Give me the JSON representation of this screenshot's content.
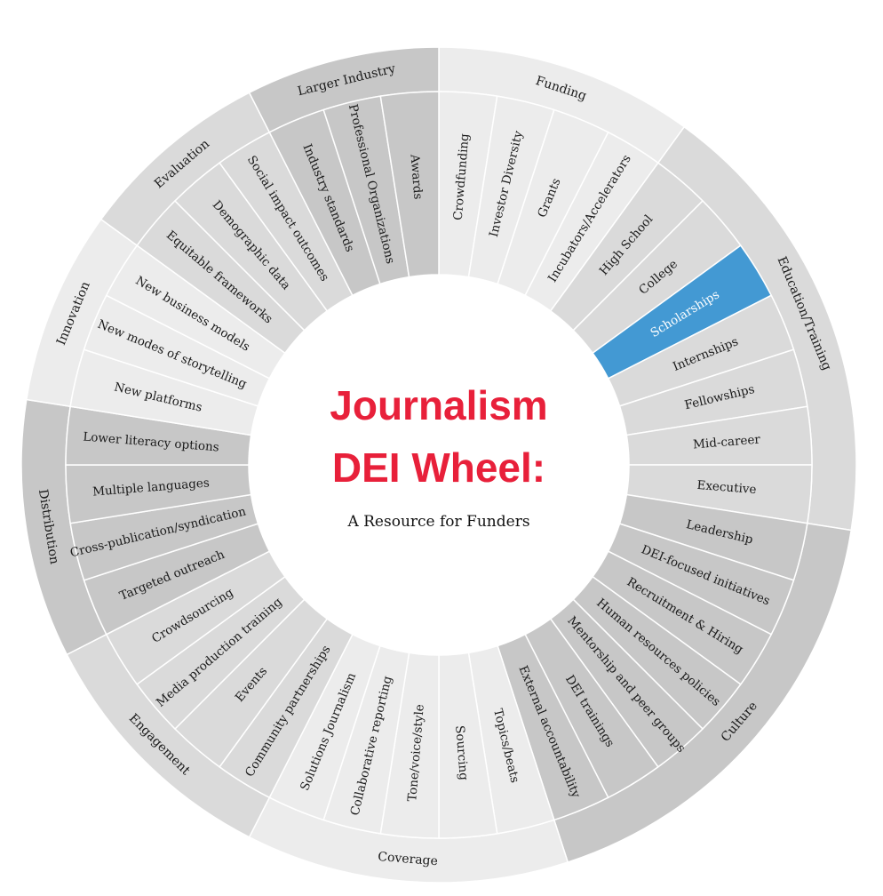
{
  "title_line1": "Journalism",
  "title_line2": "DEI Wheel:",
  "subtitle": "A Resource for Funders",
  "colors": {
    "title": "#e8203a",
    "subtitle": "#111111",
    "text": "#1a1a1a",
    "highlight": "#4399d3",
    "highlight_text": "#ffffff",
    "divider": "#ffffff"
  },
  "sectors": [
    {
      "name": "Funding",
      "color": "#ececec",
      "items": [
        {
          "label": "Crowdfunding"
        },
        {
          "label": "Investor Diversity"
        },
        {
          "label": "Grants"
        },
        {
          "label": "Incubators/Accelerators"
        }
      ]
    },
    {
      "name": "Education/Training",
      "color": "#dadada",
      "items": [
        {
          "label": "High School"
        },
        {
          "label": "College"
        },
        {
          "label": "Scholarships",
          "highlighted": true
        },
        {
          "label": "Internships"
        },
        {
          "label": "Fellowships"
        },
        {
          "label": "Mid-career"
        },
        {
          "label": "Executive"
        }
      ]
    },
    {
      "name": "Culture",
      "color": "#c7c7c7",
      "items": [
        {
          "label": "Leadership"
        },
        {
          "label": "DEI-focused initiatives"
        },
        {
          "label": "Recruitment & Hiring"
        },
        {
          "label": "Human resources policies"
        },
        {
          "label": "Mentorship and peer groups"
        },
        {
          "label": "DEI trainings"
        },
        {
          "label": "External accountability"
        }
      ]
    },
    {
      "name": "Coverage",
      "color": "#ececec",
      "items": [
        {
          "label": "Topics/beats"
        },
        {
          "label": "Sourcing"
        },
        {
          "label": "Tone/voice/style"
        },
        {
          "label": "Collaborative reporting"
        },
        {
          "label": "Solutions Journalism"
        }
      ]
    },
    {
      "name": "Engagement",
      "color": "#dadada",
      "items": [
        {
          "label": "Community partnerships"
        },
        {
          "label": "Events"
        },
        {
          "label": "Media production training"
        },
        {
          "label": "Crowdsourcing"
        }
      ]
    },
    {
      "name": "Distribution",
      "color": "#c7c7c7",
      "items": [
        {
          "label": "Targeted outreach"
        },
        {
          "label": "Cross-publication/syndication"
        },
        {
          "label": "Multiple languages"
        },
        {
          "label": "Lower literacy options"
        }
      ]
    },
    {
      "name": "Innovation",
      "color": "#ececec",
      "items": [
        {
          "label": "New platforms"
        },
        {
          "label": "New modes of storytelling"
        },
        {
          "label": "New business models"
        }
      ]
    },
    {
      "name": "Evaluation",
      "color": "#dadada",
      "items": [
        {
          "label": "Equitable frameworks"
        },
        {
          "label": "Demographic data"
        },
        {
          "label": "Social impact outcomes"
        }
      ]
    },
    {
      "name": "Larger Industry",
      "color": "#c7c7c7",
      "items": [
        {
          "label": "Industry standards"
        },
        {
          "label": "Professional Organizations"
        },
        {
          "label": "Awards"
        }
      ]
    }
  ]
}
